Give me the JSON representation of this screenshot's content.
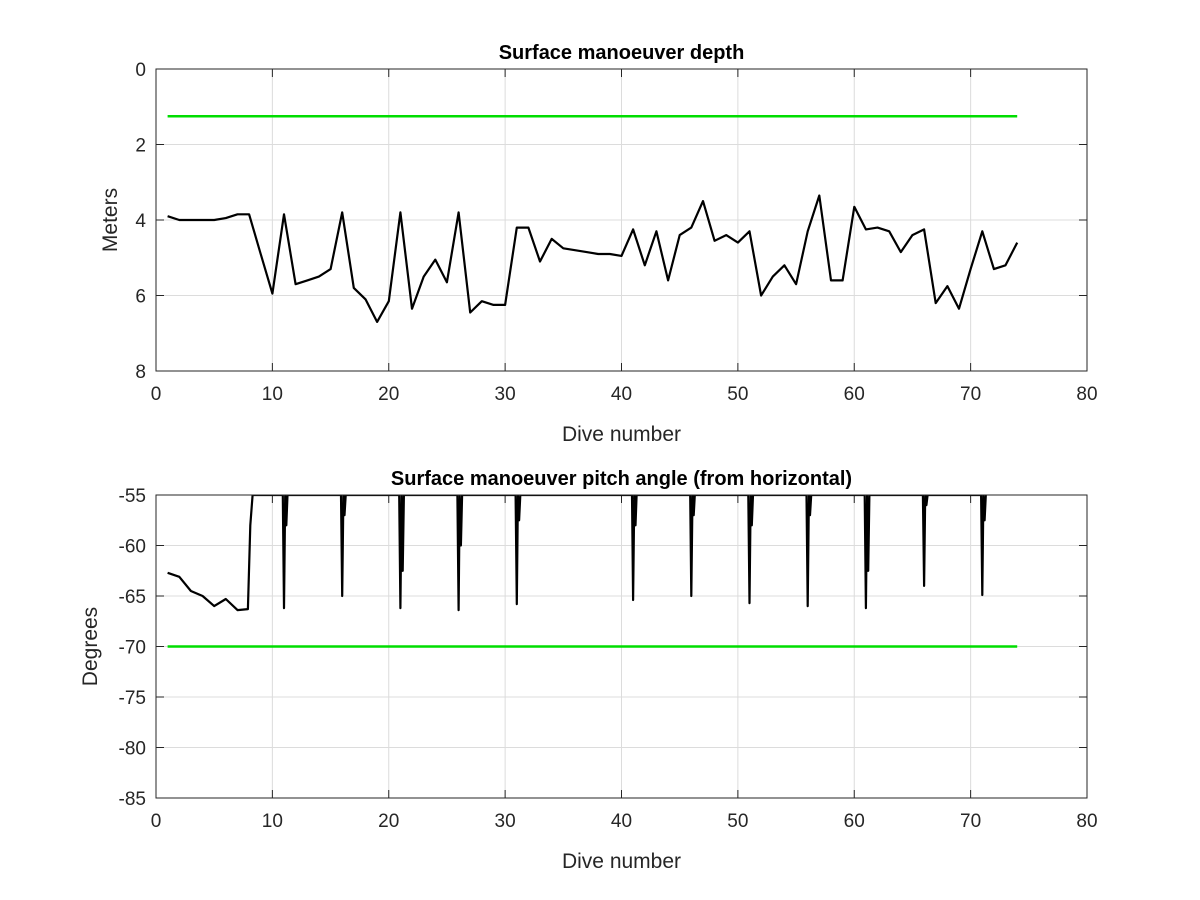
{
  "chart_data": [
    {
      "type": "line",
      "title": "Surface manoeuver depth",
      "xlabel": "Dive number",
      "ylabel": "Meters",
      "xlim": [
        0,
        80
      ],
      "ylim": [
        0,
        8
      ],
      "y_reversed": true,
      "grid": true,
      "xticks": [
        "0",
        "10",
        "20",
        "30",
        "40",
        "50",
        "60",
        "70",
        "80"
      ],
      "yticks": [
        "0",
        "2",
        "4",
        "6",
        "8"
      ],
      "series": [
        {
          "color": "#00dd00",
          "x": [
            1,
            74
          ],
          "y": [
            1.25,
            1.25
          ]
        },
        {
          "color": "#000000",
          "x": [
            1,
            2,
            3,
            4,
            5,
            6,
            7,
            8,
            9,
            10,
            11,
            12,
            13,
            14,
            15,
            16,
            17,
            18,
            19,
            20,
            21,
            22,
            23,
            24,
            25,
            26,
            27,
            28,
            29,
            30,
            31,
            32,
            33,
            34,
            35,
            36,
            37,
            38,
            39,
            40,
            41,
            42,
            43,
            44,
            45,
            46,
            47,
            48,
            49,
            50,
            51,
            52,
            53,
            54,
            55,
            56,
            57,
            58,
            59,
            60,
            61,
            62,
            63,
            64,
            65,
            66,
            67,
            68,
            69,
            70,
            71,
            72,
            73,
            74
          ],
          "y": [
            3.9,
            4.0,
            4.0,
            4.0,
            4.0,
            3.95,
            3.85,
            3.85,
            4.9,
            5.95,
            3.85,
            5.7,
            5.6,
            5.5,
            5.3,
            3.8,
            5.8,
            6.1,
            6.7,
            6.15,
            3.8,
            6.35,
            5.5,
            5.05,
            5.65,
            3.8,
            6.45,
            6.15,
            6.25,
            6.25,
            4.2,
            4.2,
            5.1,
            4.5,
            4.75,
            4.8,
            4.85,
            4.9,
            4.9,
            4.95,
            4.25,
            5.2,
            4.3,
            5.6,
            4.4,
            4.2,
            3.5,
            4.55,
            4.4,
            4.6,
            4.3,
            6.0,
            5.5,
            5.2,
            5.7,
            4.3,
            3.35,
            5.6,
            5.6,
            3.65,
            4.25,
            4.2,
            4.3,
            4.85,
            4.4,
            4.25,
            6.2,
            5.75,
            6.35,
            5.3,
            4.3,
            5.3,
            5.2,
            4.6
          ]
        }
      ]
    },
    {
      "type": "line",
      "title": "Surface manoeuver pitch angle (from horizontal)",
      "xlabel": "Dive number",
      "ylabel": "Degrees",
      "xlim": [
        0,
        80
      ],
      "ylim": [
        -85,
        -55
      ],
      "grid": true,
      "xticks": [
        "0",
        "10",
        "20",
        "30",
        "40",
        "50",
        "60",
        "70",
        "80"
      ],
      "yticks": [
        "-55",
        "-60",
        "-65",
        "-70",
        "-75",
        "-80",
        "-85"
      ],
      "series": [
        {
          "color": "#00dd00",
          "x": [
            1,
            74
          ],
          "y": [
            -70,
            -70
          ]
        },
        {
          "color": "#000000",
          "x": [
            1,
            2,
            3,
            4,
            5,
            6,
            7,
            7.9,
            8.1,
            8.3,
            10.9,
            11.0,
            11.1,
            11.2,
            11.3,
            15.9,
            16.0,
            16.1,
            16.2,
            16.3,
            20.9,
            21.0,
            21.1,
            21.2,
            21.3,
            25.9,
            26.0,
            26.1,
            26.2,
            26.3,
            30.9,
            31.0,
            31.1,
            31.2,
            31.3,
            40.9,
            41.0,
            41.1,
            41.2,
            41.3,
            45.9,
            46.0,
            46.1,
            46.2,
            46.3,
            50.9,
            51.0,
            51.1,
            51.2,
            51.3,
            55.9,
            56.0,
            56.1,
            56.2,
            56.3,
            60.9,
            61.0,
            61.1,
            61.2,
            61.3,
            65.9,
            66.0,
            66.1,
            66.2,
            66.3,
            70.9,
            71.0,
            71.1,
            71.2,
            71.3
          ],
          "y": [
            -62.7,
            -63.1,
            -64.5,
            -65.0,
            -66.0,
            -65.3,
            -66.4,
            -66.3,
            -58.0,
            -55.0,
            -55.0,
            -66.2,
            -55.0,
            -58.0,
            -55.0,
            -55.0,
            -65.0,
            -55.0,
            -57.0,
            -55.0,
            -55.0,
            -66.2,
            -55.0,
            -62.5,
            -55.0,
            -55.0,
            -66.4,
            -55.0,
            -60.0,
            -55.0,
            -55.0,
            -65.8,
            -55.0,
            -57.5,
            -55.0,
            -55.0,
            -65.4,
            -55.0,
            -58.0,
            -55.0,
            -55.0,
            -65.0,
            -55.0,
            -57.0,
            -55.0,
            -55.0,
            -65.7,
            -55.0,
            -58.0,
            -55.0,
            -55.0,
            -66.0,
            -55.0,
            -57.0,
            -55.0,
            -55.0,
            -66.2,
            -55.0,
            -62.5,
            -55.0,
            -55.0,
            -64.0,
            -55.0,
            -56.0,
            -55.0,
            -55.0,
            -64.9,
            -55.0,
            -57.5,
            -55.0
          ]
        }
      ]
    }
  ]
}
